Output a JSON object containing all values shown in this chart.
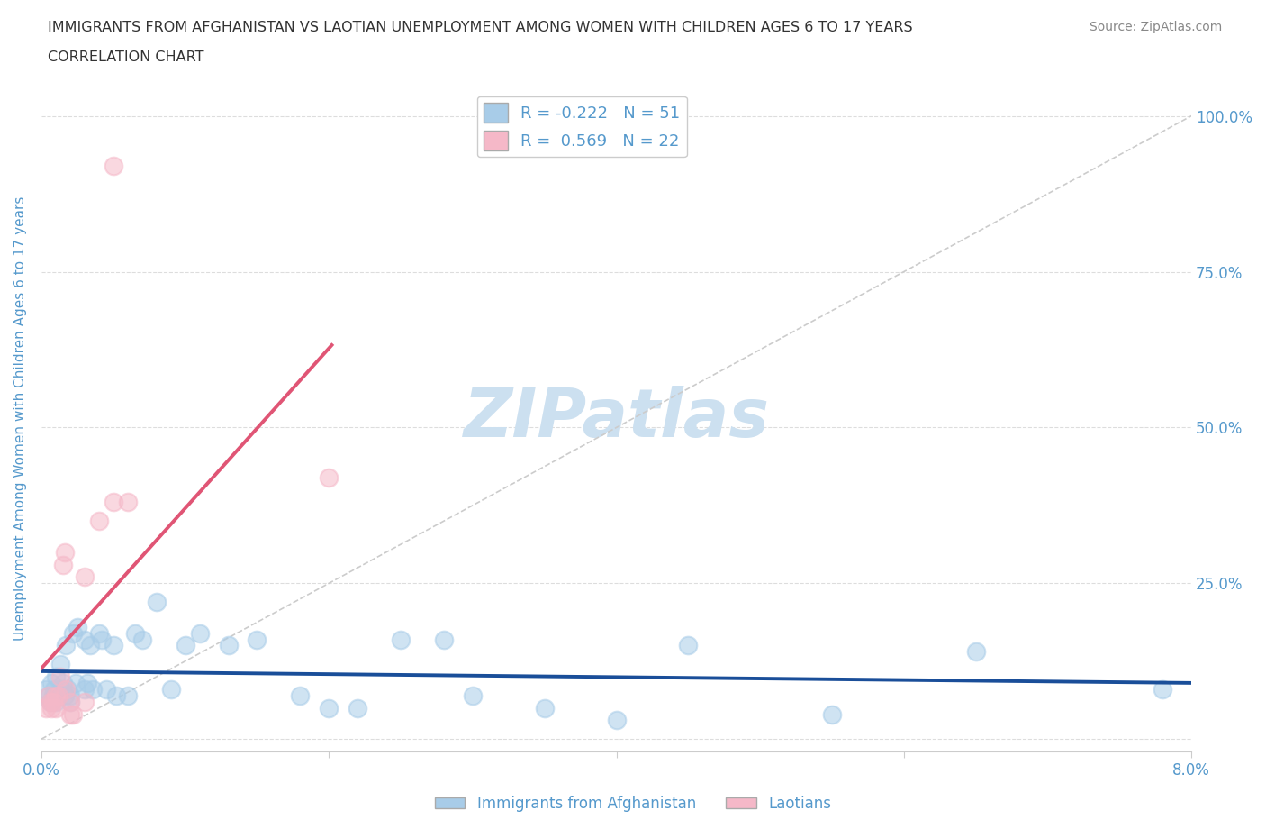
{
  "title_line1": "IMMIGRANTS FROM AFGHANISTAN VS LAOTIAN UNEMPLOYMENT AMONG WOMEN WITH CHILDREN AGES 6 TO 17 YEARS",
  "title_line2": "CORRELATION CHART",
  "source_text": "Source: ZipAtlas.com",
  "ylabel": "Unemployment Among Women with Children Ages 6 to 17 years",
  "xlim": [
    0.0,
    0.08
  ],
  "ylim": [
    -0.02,
    1.05
  ],
  "xticks": [
    0.0,
    0.02,
    0.04,
    0.06,
    0.08
  ],
  "xticklabels": [
    "0.0%",
    "",
    "",
    "",
    "8.0%"
  ],
  "yticks": [
    0.0,
    0.25,
    0.5,
    0.75,
    1.0
  ],
  "yticklabels": [
    "",
    "25.0%",
    "50.0%",
    "75.0%",
    "100.0%"
  ],
  "background_color": "#ffffff",
  "grid_color": "#dddddd",
  "watermark": "ZIPatlas",
  "watermark_color": "#cce0f0",
  "blue_color": "#a8cce8",
  "pink_color": "#f5b8c8",
  "blue_line_color": "#1a4e99",
  "pink_line_color": "#e05575",
  "diag_color": "#cccccc",
  "title_color": "#333333",
  "axis_label_color": "#5599cc",
  "legend_label1": "Immigrants from Afghanistan",
  "legend_label2": "Laotians",
  "afghanistan_x": [
    0.0003,
    0.0005,
    0.0006,
    0.0007,
    0.0008,
    0.0009,
    0.001,
    0.001,
    0.0012,
    0.0013,
    0.0014,
    0.0015,
    0.0016,
    0.0017,
    0.0018,
    0.002,
    0.002,
    0.0022,
    0.0024,
    0.0025,
    0.003,
    0.003,
    0.0032,
    0.0034,
    0.0036,
    0.004,
    0.0042,
    0.0045,
    0.005,
    0.0052,
    0.006,
    0.0065,
    0.007,
    0.008,
    0.009,
    0.01,
    0.011,
    0.013,
    0.015,
    0.018,
    0.02,
    0.022,
    0.025,
    0.028,
    0.03,
    0.035,
    0.04,
    0.045,
    0.055,
    0.065,
    0.078
  ],
  "afghanistan_y": [
    0.08,
    0.07,
    0.06,
    0.09,
    0.07,
    0.08,
    0.06,
    0.1,
    0.07,
    0.12,
    0.08,
    0.09,
    0.07,
    0.15,
    0.08,
    0.07,
    0.06,
    0.17,
    0.09,
    0.18,
    0.16,
    0.08,
    0.09,
    0.15,
    0.08,
    0.17,
    0.16,
    0.08,
    0.15,
    0.07,
    0.07,
    0.17,
    0.16,
    0.22,
    0.08,
    0.15,
    0.17,
    0.15,
    0.16,
    0.07,
    0.05,
    0.05,
    0.16,
    0.16,
    0.07,
    0.05,
    0.03,
    0.15,
    0.04,
    0.14,
    0.08
  ],
  "laotian_x": [
    0.0003,
    0.0005,
    0.0006,
    0.0007,
    0.0008,
    0.001,
    0.001,
    0.0012,
    0.0013,
    0.0015,
    0.0016,
    0.0017,
    0.002,
    0.002,
    0.0022,
    0.003,
    0.003,
    0.004,
    0.005,
    0.006,
    0.02,
    0.005
  ],
  "laotian_y": [
    0.05,
    0.07,
    0.06,
    0.05,
    0.06,
    0.05,
    0.07,
    0.07,
    0.1,
    0.28,
    0.3,
    0.08,
    0.06,
    0.04,
    0.04,
    0.06,
    0.26,
    0.35,
    0.38,
    0.38,
    0.42,
    0.92
  ]
}
